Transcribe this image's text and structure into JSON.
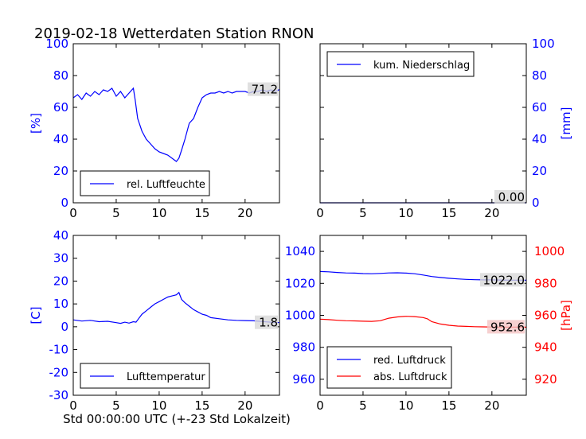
{
  "figure": {
    "title": "2019-02-18 Wetterdaten Station RNON",
    "footer": "Std 00:00:00 UTC (+-23 Std Lokalzeit)"
  },
  "colors": {
    "blue": "#0000ff",
    "red": "#ff0000",
    "label_box": "#d8d8d8",
    "label_box_red": "#f4c4c4"
  },
  "chart_data": [
    {
      "id": "humidity",
      "type": "line",
      "ylabel": "[%]",
      "ylabel_side": "left",
      "ylabel_color": "#0000ff",
      "xlim": [
        0,
        24
      ],
      "ylim": [
        0,
        100
      ],
      "xticks": [
        0,
        5,
        10,
        15,
        20
      ],
      "yticks": [
        0,
        20,
        40,
        60,
        80,
        100
      ],
      "legend": {
        "placement": "lower-left",
        "entries": [
          {
            "label": "rel. Luftfeuchte",
            "color": "#0000ff"
          }
        ]
      },
      "end_label": {
        "text": "71.2",
        "value": 71.2
      },
      "series": [
        {
          "name": "rel. Luftfeuchte",
          "color": "#0000ff",
          "x": [
            0,
            0.5,
            1,
            1.5,
            2,
            2.5,
            3,
            3.5,
            4,
            4.5,
            5,
            5.5,
            6,
            6.5,
            7,
            7.2,
            7.5,
            8,
            8.5,
            9,
            9.5,
            10,
            10.5,
            11,
            11.5,
            12,
            12.3,
            12.6,
            13,
            13.5,
            14,
            14.5,
            15,
            15.5,
            16,
            16.5,
            17,
            17.5,
            18,
            18.5,
            19,
            19.5,
            20,
            20.5,
            21,
            21.5,
            22,
            22.5,
            23,
            23.5,
            24
          ],
          "y": [
            66,
            68,
            65,
            69,
            67,
            70,
            68,
            71,
            70,
            72,
            67,
            70,
            66,
            69,
            72,
            65,
            53,
            45,
            40,
            37,
            34,
            32,
            31,
            30,
            28,
            26,
            28,
            33,
            40,
            50,
            53,
            60,
            66,
            68,
            69,
            69,
            70,
            69,
            70,
            69,
            70,
            70,
            70,
            69,
            70,
            70,
            71,
            70,
            71,
            70,
            71.2
          ]
        }
      ]
    },
    {
      "id": "precip",
      "type": "line",
      "ylabel": "[mm]",
      "ylabel_side": "right",
      "ylabel_color": "#0000ff",
      "xlim": [
        0,
        24
      ],
      "ylim": [
        0,
        100
      ],
      "xticks": [
        0,
        5,
        10,
        15,
        20
      ],
      "yticks": [
        0,
        20,
        40,
        60,
        80,
        100
      ],
      "legend": {
        "placement": "upper-left",
        "entries": [
          {
            "label": "kum. Niederschlag",
            "color": "#0000ff"
          }
        ]
      },
      "end_label": {
        "text": "0.00",
        "value": 0
      },
      "series": [
        {
          "name": "kum. Niederschlag",
          "color": "#0000ff",
          "x": [
            0,
            24
          ],
          "y": [
            0,
            0
          ]
        }
      ]
    },
    {
      "id": "temperature",
      "type": "line",
      "ylabel": "[C]",
      "ylabel_side": "left",
      "ylabel_color": "#0000ff",
      "xlim": [
        0,
        24
      ],
      "ylim": [
        -30,
        40
      ],
      "xticks": [
        0,
        5,
        10,
        15,
        20
      ],
      "yticks": [
        -30,
        -20,
        -10,
        0,
        10,
        20,
        30,
        40
      ],
      "legend": {
        "placement": "lower-left",
        "entries": [
          {
            "label": "Lufttemperatur",
            "color": "#0000ff"
          }
        ]
      },
      "end_label": {
        "text": "1.8",
        "value": 1.8
      },
      "series": [
        {
          "name": "Lufttemperatur",
          "color": "#0000ff",
          "x": [
            0,
            1,
            2,
            3,
            4,
            5,
            5.5,
            6,
            6.5,
            7,
            7.3,
            7.6,
            8,
            8.5,
            9,
            9.5,
            10,
            10.5,
            11,
            11.5,
            12,
            12.3,
            12.6,
            13,
            13.5,
            14,
            14.5,
            15,
            15.5,
            16,
            17,
            18,
            19,
            20,
            21,
            22,
            23,
            24
          ],
          "y": [
            3,
            2.5,
            2.8,
            2.2,
            2.4,
            1.8,
            1.5,
            2.0,
            1.6,
            2.2,
            2.0,
            3.5,
            5.5,
            7,
            8.5,
            10,
            11,
            12,
            13,
            13.5,
            14,
            15,
            12,
            10.5,
            9,
            7.5,
            6.5,
            5.5,
            5,
            4,
            3.5,
            3,
            2.8,
            2.7,
            2.6,
            2.3,
            2.0,
            1.8
          ]
        }
      ]
    },
    {
      "id": "pressure",
      "type": "line",
      "ylabel": "[hPa]",
      "ylabel_side": "right",
      "ylabel_color": "#ff0000",
      "xlim": [
        0,
        24
      ],
      "ylim": [
        950,
        1050
      ],
      "y2lim": [
        910,
        1010
      ],
      "xticks": [
        0,
        5,
        10,
        15,
        20
      ],
      "yticks": [
        960,
        980,
        1000,
        1020,
        1040
      ],
      "y2ticks": [
        920,
        940,
        960,
        980,
        1000
      ],
      "legend": {
        "placement": "lower-left",
        "entries": [
          {
            "label": "red. Luftdruck",
            "color": "#0000ff"
          },
          {
            "label": "abs. Luftdruck",
            "color": "#ff0000"
          }
        ]
      },
      "series": [
        {
          "name": "red. Luftdruck",
          "color": "#0000ff",
          "axis": "left",
          "x": [
            0,
            1,
            2,
            3,
            4,
            5,
            6,
            7,
            8,
            9,
            10,
            11,
            12,
            13,
            14,
            15,
            16,
            17,
            18,
            19,
            20,
            21,
            22,
            23,
            24
          ],
          "y": [
            1027.4,
            1027.2,
            1026.8,
            1026.5,
            1026.4,
            1026.1,
            1026.0,
            1026.2,
            1026.5,
            1026.6,
            1026.4,
            1026.0,
            1025.2,
            1024.3,
            1023.7,
            1023.2,
            1022.8,
            1022.5,
            1022.3,
            1022.2,
            1022.2,
            1022.1,
            1022.0,
            1022.0,
            1022.0
          ],
          "end_label": {
            "text": "1022.0",
            "value": 1022.0
          }
        },
        {
          "name": "abs. Luftdruck",
          "color": "#ff0000",
          "axis": "right",
          "x": [
            0,
            1,
            2,
            3,
            4,
            5,
            6,
            7,
            8,
            9,
            10,
            11,
            12,
            12.5,
            13,
            14,
            15,
            16,
            17,
            18,
            19,
            20,
            21,
            22,
            23,
            24
          ],
          "y": [
            957.6,
            957.3,
            956.9,
            956.6,
            956.5,
            956.3,
            956.2,
            956.6,
            958.2,
            959.0,
            959.4,
            959.2,
            958.6,
            957.8,
            956.0,
            954.6,
            953.8,
            953.3,
            953.1,
            952.9,
            952.8,
            952.7,
            952.6,
            952.6,
            952.6,
            952.6
          ],
          "end_label": {
            "text": "952.6",
            "value": 952.6
          }
        }
      ]
    }
  ]
}
